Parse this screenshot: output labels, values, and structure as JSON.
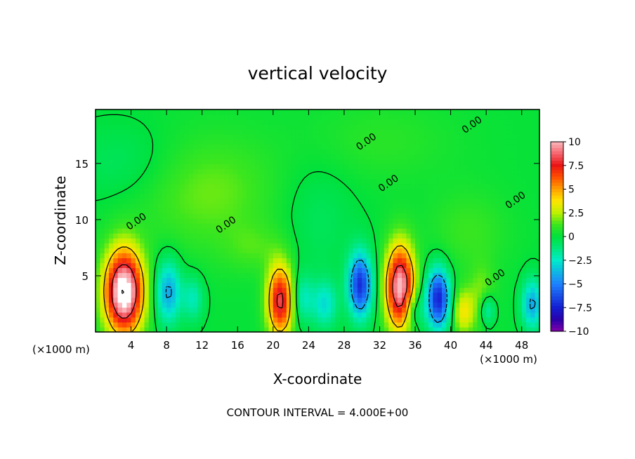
{
  "chart_data": {
    "type": "heatmap",
    "title": "vertical velocity",
    "xlabel": "X-coordinate",
    "ylabel": "Z-coordinate",
    "x_unit_left": "(×1000 m)",
    "x_unit_right": "(×1000 m)",
    "footer": "CONTOUR INTERVAL = 4.000E+00",
    "xlim": [
      0,
      50
    ],
    "ylim": [
      0,
      19.8
    ],
    "x_ticks": [
      "4",
      "8",
      "12",
      "16",
      "20",
      "24",
      "28",
      "32",
      "36",
      "40",
      "44",
      "48"
    ],
    "x_tick_values": [
      4,
      8,
      12,
      16,
      20,
      24,
      28,
      32,
      36,
      40,
      44,
      48
    ],
    "y_ticks": [
      "5",
      "10",
      "15"
    ],
    "y_tick_values": [
      5,
      10,
      15
    ],
    "contour_labels": [
      {
        "text": "0.00",
        "x": 4.8,
        "y": 9.6
      },
      {
        "text": "0.00",
        "x": 14.9,
        "y": 9.3
      },
      {
        "text": "0.00",
        "x": 30.7,
        "y": 16.7
      },
      {
        "text": "0.00",
        "x": 33.2,
        "y": 13.0
      },
      {
        "text": "0.00",
        "x": 42.6,
        "y": 18.2
      },
      {
        "text": "0.00",
        "x": 47.5,
        "y": 11.5
      },
      {
        "text": "0.00",
        "x": 45.2,
        "y": 4.6
      }
    ],
    "colorbar": {
      "ticks": [
        "10",
        "7.5",
        "5",
        "2.5",
        "0",
        "−2.5",
        "−5",
        "−7.5",
        "−10"
      ],
      "tick_values": [
        10,
        7.5,
        5,
        2.5,
        0,
        -2.5,
        -5,
        -7.5,
        -10
      ],
      "range": [
        -10,
        10
      ]
    },
    "features": [
      {
        "x": 3.2,
        "z": 3.6,
        "sx": 1.5,
        "sz": 2.6,
        "amp": 12
      },
      {
        "x": 8.2,
        "z": 3.6,
        "sx": 1.0,
        "sz": 2.0,
        "amp": -4.5
      },
      {
        "x": 11.0,
        "z": 3.0,
        "sx": 0.8,
        "sz": 1.4,
        "amp": -2.5
      },
      {
        "x": 20.8,
        "z": 2.8,
        "sx": 1.0,
        "sz": 2.2,
        "amp": 8.5
      },
      {
        "x": 23.3,
        "z": 3.0,
        "sx": 0.8,
        "sz": 1.5,
        "amp": -2.5
      },
      {
        "x": 25.8,
        "z": 2.5,
        "sx": 1.0,
        "sz": 1.5,
        "amp": -3.0
      },
      {
        "x": 29.8,
        "z": 4.2,
        "sx": 0.9,
        "sz": 2.0,
        "amp": -7.5
      },
      {
        "x": 34.3,
        "z": 4.0,
        "sx": 1.1,
        "sz": 2.6,
        "amp": 10.5
      },
      {
        "x": 38.6,
        "z": 3.0,
        "sx": 0.9,
        "sz": 1.9,
        "amp": -8.0
      },
      {
        "x": 35.8,
        "z": 2.0,
        "sx": 0.8,
        "sz": 1.2,
        "amp": -2.5
      },
      {
        "x": 41.4,
        "z": 1.8,
        "sx": 0.8,
        "sz": 1.4,
        "amp": 3.5
      },
      {
        "x": 43.5,
        "z": 3.0,
        "sx": 1.0,
        "sz": 2.0,
        "amp": 2.0
      },
      {
        "x": 44.1,
        "z": 2.0,
        "sx": 0.6,
        "sz": 1.0,
        "amp": -3.5
      },
      {
        "x": 49.2,
        "z": 2.5,
        "sx": 0.8,
        "sz": 1.6,
        "amp": -4.5
      },
      {
        "x": 12.5,
        "z": 12.5,
        "sx": 5.5,
        "sz": 3.5,
        "amp": 1.6
      },
      {
        "x": 3.5,
        "z": 15.0,
        "sx": 4.5,
        "sz": 2.5,
        "amp": -0.9
      },
      {
        "x": 25.0,
        "z": 10.0,
        "sx": 3.0,
        "sz": 4.0,
        "amp": -0.8
      },
      {
        "x": 32.0,
        "z": 17.0,
        "sx": 6.0,
        "sz": 2.5,
        "amp": 0.7
      },
      {
        "x": 42.0,
        "z": 9.0,
        "sx": 3.0,
        "sz": 2.5,
        "amp": 1.0
      },
      {
        "x": 18.0,
        "z": 7.5,
        "sx": 2.5,
        "sz": 1.5,
        "amp": 1.0
      }
    ]
  }
}
